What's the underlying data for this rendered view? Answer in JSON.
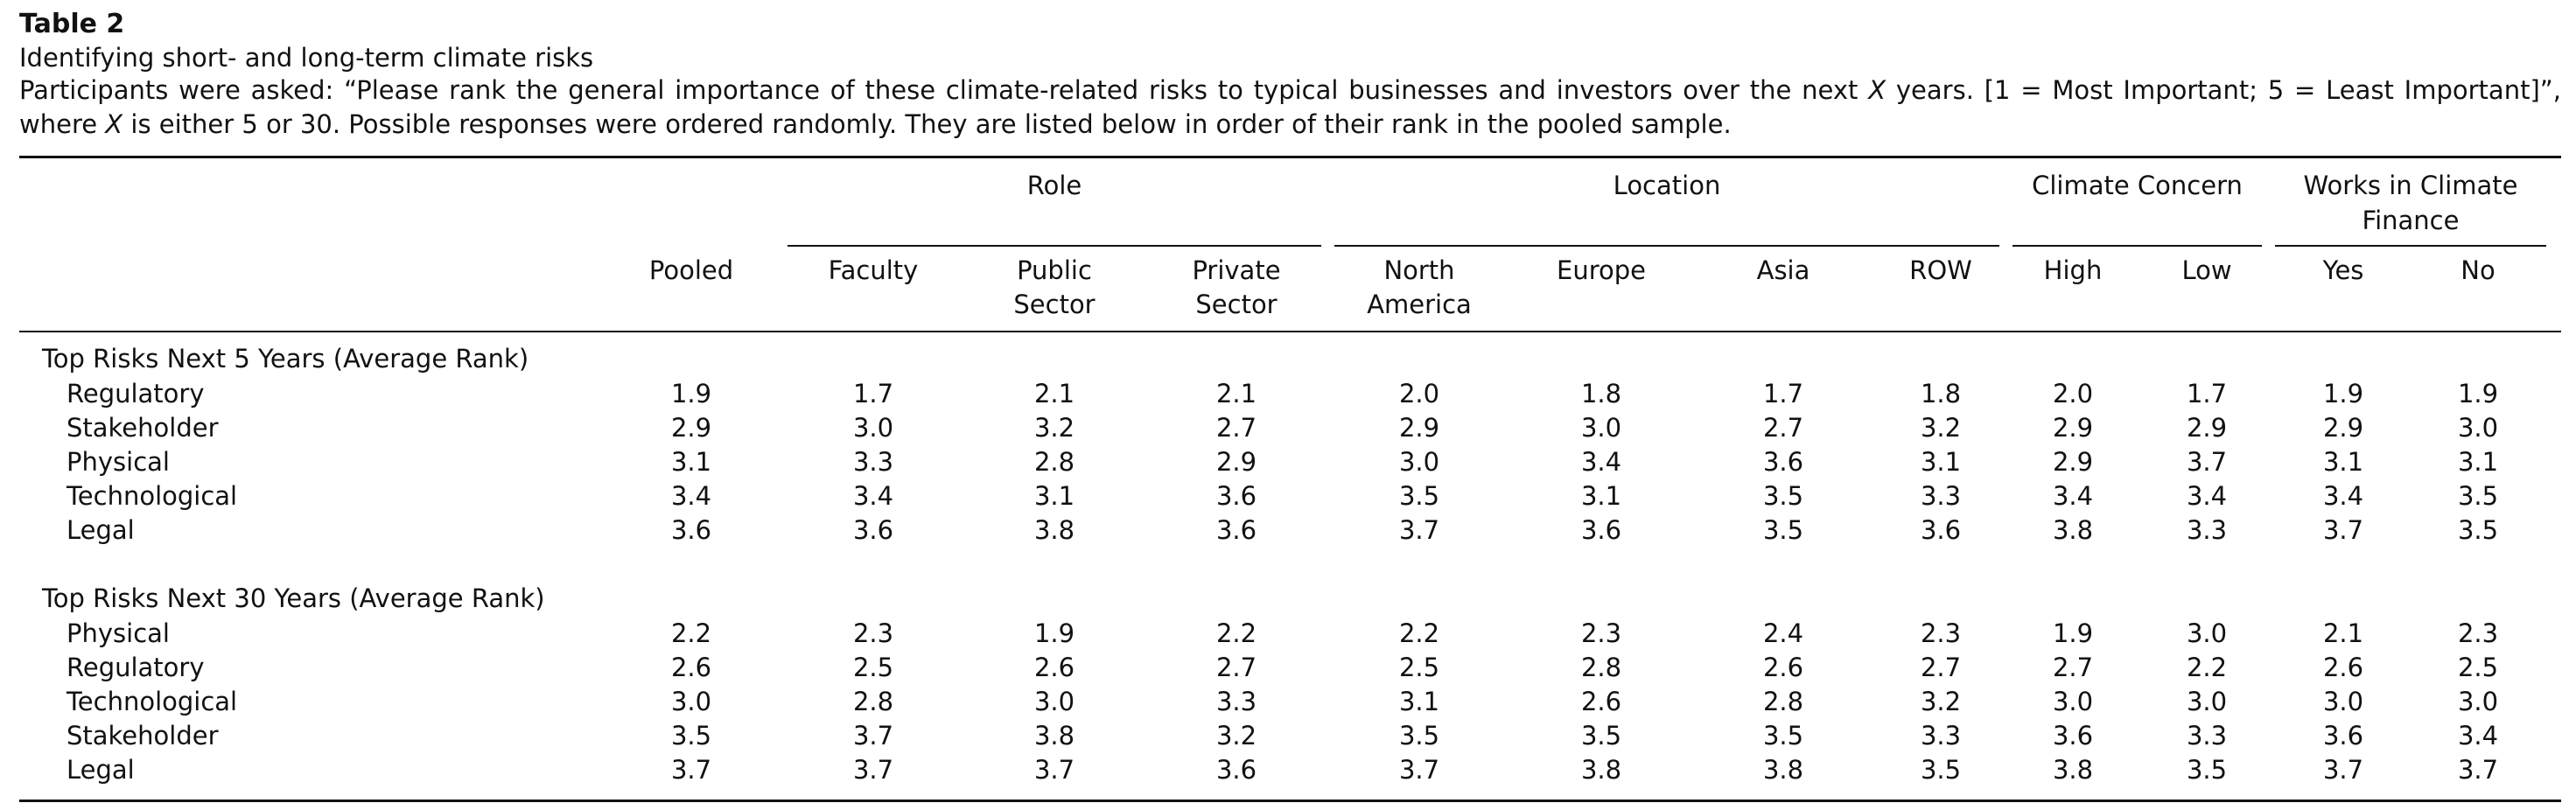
{
  "table": {
    "label": "Table 2",
    "title": "Identifying short- and long-term climate risks",
    "note": {
      "p1": "Participants were asked: “Please rank the general importance of these climate-related risks to typical businesses and investors over the next ",
      "var1": "X",
      "p2": " years. [1 = Most Important; 5 = Least Important]”, where ",
      "var2": "X",
      "p3": " is either 5 or 30. Possible responses were ordered randomly. They are listed below in order of their rank in the pooled sample."
    },
    "groups": [
      {
        "label": "Role"
      },
      {
        "label": "Location"
      },
      {
        "label": "Climate Concern"
      },
      {
        "label": "Works in Climate Finance"
      }
    ],
    "columns": [
      "Pooled",
      "Faculty",
      "Public Sector",
      "Private Sector",
      "North America",
      "Europe",
      "Asia",
      "ROW",
      "High",
      "Low",
      "Yes",
      "No"
    ],
    "sections": [
      {
        "title": "Top Risks Next 5 Years (Average Rank)",
        "rows": [
          {
            "label": "Regulatory",
            "values": [
              "1.9",
              "1.7",
              "2.1",
              "2.1",
              "2.0",
              "1.8",
              "1.7",
              "1.8",
              "2.0",
              "1.7",
              "1.9",
              "1.9"
            ]
          },
          {
            "label": "Stakeholder",
            "values": [
              "2.9",
              "3.0",
              "3.2",
              "2.7",
              "2.9",
              "3.0",
              "2.7",
              "3.2",
              "2.9",
              "2.9",
              "2.9",
              "3.0"
            ]
          },
          {
            "label": "Physical",
            "values": [
              "3.1",
              "3.3",
              "2.8",
              "2.9",
              "3.0",
              "3.4",
              "3.6",
              "3.1",
              "2.9",
              "3.7",
              "3.1",
              "3.1"
            ]
          },
          {
            "label": "Technological",
            "values": [
              "3.4",
              "3.4",
              "3.1",
              "3.6",
              "3.5",
              "3.1",
              "3.5",
              "3.3",
              "3.4",
              "3.4",
              "3.4",
              "3.5"
            ]
          },
          {
            "label": "Legal",
            "values": [
              "3.6",
              "3.6",
              "3.8",
              "3.6",
              "3.7",
              "3.6",
              "3.5",
              "3.6",
              "3.8",
              "3.3",
              "3.7",
              "3.5"
            ]
          }
        ]
      },
      {
        "title": "Top Risks Next 30 Years (Average Rank)",
        "rows": [
          {
            "label": "Physical",
            "values": [
              "2.2",
              "2.3",
              "1.9",
              "2.2",
              "2.2",
              "2.3",
              "2.4",
              "2.3",
              "1.9",
              "3.0",
              "2.1",
              "2.3"
            ]
          },
          {
            "label": "Regulatory",
            "values": [
              "2.6",
              "2.5",
              "2.6",
              "2.7",
              "2.5",
              "2.8",
              "2.6",
              "2.7",
              "2.7",
              "2.2",
              "2.6",
              "2.5"
            ]
          },
          {
            "label": "Technological",
            "values": [
              "3.0",
              "2.8",
              "3.0",
              "3.3",
              "3.1",
              "2.6",
              "2.8",
              "3.2",
              "3.0",
              "3.0",
              "3.0",
              "3.0"
            ]
          },
          {
            "label": "Stakeholder",
            "values": [
              "3.5",
              "3.7",
              "3.8",
              "3.2",
              "3.5",
              "3.5",
              "3.5",
              "3.3",
              "3.6",
              "3.3",
              "3.6",
              "3.4"
            ]
          },
          {
            "label": "Legal",
            "values": [
              "3.7",
              "3.7",
              "3.7",
              "3.6",
              "3.7",
              "3.8",
              "3.8",
              "3.5",
              "3.8",
              "3.5",
              "3.7",
              "3.7"
            ]
          }
        ]
      }
    ]
  }
}
